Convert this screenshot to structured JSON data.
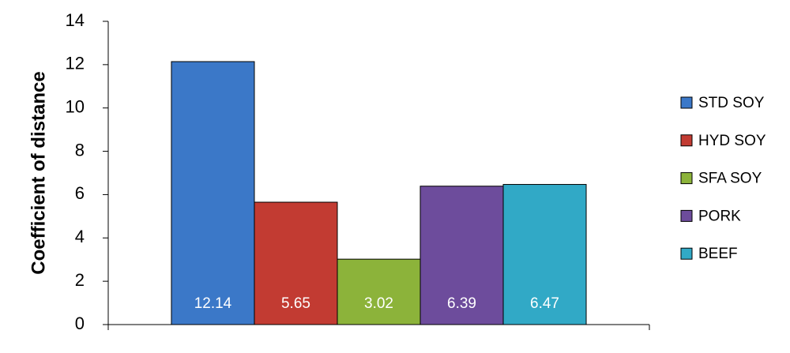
{
  "chart_data": {
    "type": "bar",
    "y_label": "Coefficient of distance",
    "categories": [
      null
    ],
    "series": [
      {
        "name": "STD SOY",
        "color": "#3b78c8",
        "values": [
          12.14
        ]
      },
      {
        "name": "HYD SOY",
        "color": "#c23b32",
        "values": [
          5.65
        ]
      },
      {
        "name": "SFA SOY",
        "color": "#8cb33a",
        "values": [
          3.02
        ]
      },
      {
        "name": "PORK",
        "color": "#6d4c9c",
        "values": [
          6.39
        ]
      },
      {
        "name": "BEEF",
        "color": "#31a9c6",
        "values": [
          6.47
        ]
      }
    ],
    "ylim": [
      0,
      14
    ],
    "yticks": [
      0,
      2,
      4,
      6,
      8,
      10,
      12,
      14
    ],
    "grid": false,
    "legend": "right",
    "data_labels": true
  }
}
